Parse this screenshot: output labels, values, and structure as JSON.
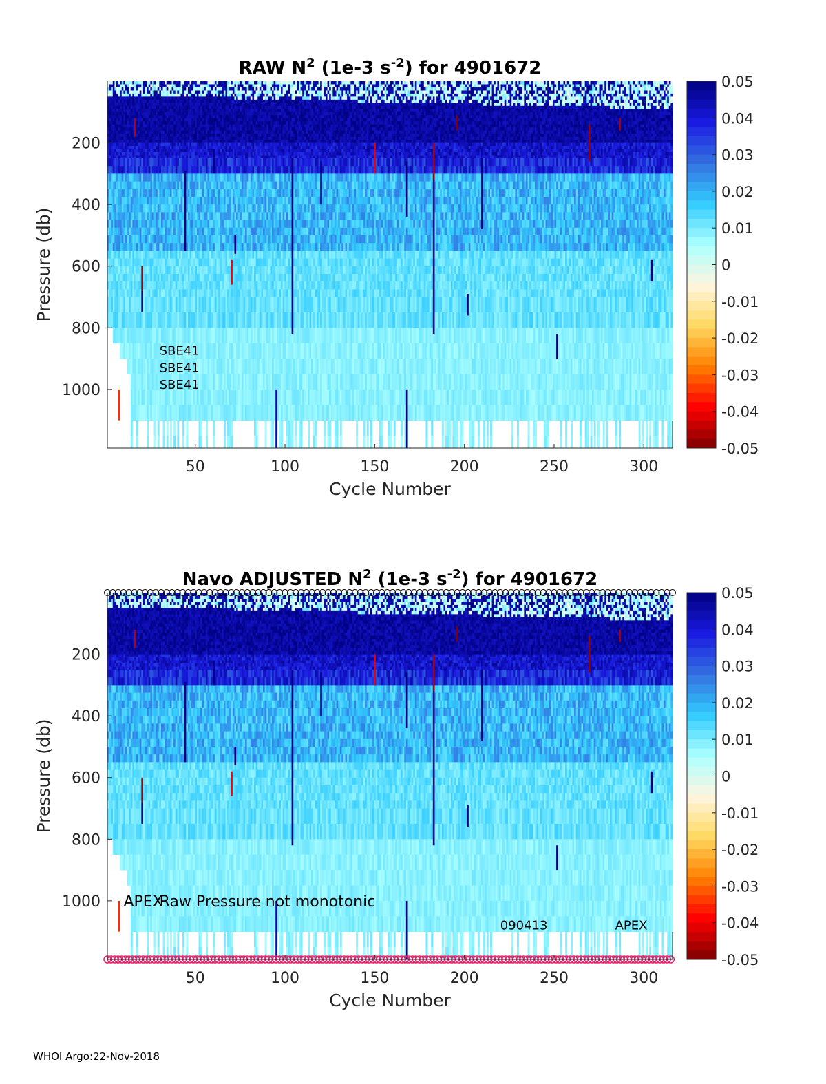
{
  "footer": "WHOI Argo:22-Nov-2018",
  "colormap": {
    "stops": [
      "#7f0000",
      "#ff0000",
      "#ff8000",
      "#ffd860",
      "#fff6e0",
      "#aaffff",
      "#33ccff",
      "#3370e0",
      "#1a1ae0",
      "#000080"
    ],
    "missing": "#ffffff"
  },
  "chart_data": [
    {
      "type": "heatmap",
      "title_parts": [
        "RAW N",
        "2",
        " (1e-3 s",
        "-2",
        ") for 4901672"
      ],
      "xlabel": "Cycle Number",
      "ylabel": "Pressure (db)",
      "xlim": [
        1,
        316
      ],
      "ylim": [
        1190,
        0
      ],
      "xticks": [
        50,
        100,
        150,
        200,
        250,
        300
      ],
      "yticks": [
        200,
        400,
        600,
        800,
        1000
      ],
      "colorbar": {
        "ticks": [
          "0.05",
          "0.04",
          "0.03",
          "0.02",
          "0.01",
          "0",
          "-0.01",
          "-0.02",
          "-0.03",
          "-0.04",
          "-0.05"
        ],
        "range": [
          -0.05,
          0.05
        ]
      },
      "annotations": [
        {
          "text": "SBE41",
          "x": 30,
          "y": 870
        },
        {
          "text": "SBE41",
          "x": 30,
          "y": 925
        },
        {
          "text": "SBE41",
          "x": 30,
          "y": 980
        }
      ]
    },
    {
      "type": "heatmap",
      "title_parts": [
        "Navo  ADJUSTED N",
        "2",
        " (1e-3 s",
        "-2",
        ") for 4901672"
      ],
      "xlabel": "Cycle Number",
      "ylabel": "Pressure (db)",
      "xlim": [
        1,
        316
      ],
      "ylim": [
        1190,
        0
      ],
      "xticks": [
        50,
        100,
        150,
        200,
        250,
        300
      ],
      "yticks": [
        200,
        400,
        600,
        800,
        1000
      ],
      "colorbar": {
        "ticks": [
          "0.05",
          "0.04",
          "0.03",
          "0.02",
          "0.01",
          "0",
          "-0.01",
          "-0.02",
          "-0.03",
          "-0.04",
          "-0.05"
        ],
        "range": [
          -0.05,
          0.05
        ]
      },
      "annotations": [
        {
          "text": "APEX",
          "x": 10,
          "y": 1000,
          "size": "large"
        },
        {
          "text": "Raw Pressure not monotonic",
          "x": 30,
          "y": 1000,
          "size": "large"
        },
        {
          "text": "090413",
          "x": 220,
          "y": 1075
        },
        {
          "text": "APEX",
          "x": 284,
          "y": 1075
        }
      ],
      "top_marker_color": "#000000",
      "bottom_marker_color": "#e8206a"
    }
  ]
}
